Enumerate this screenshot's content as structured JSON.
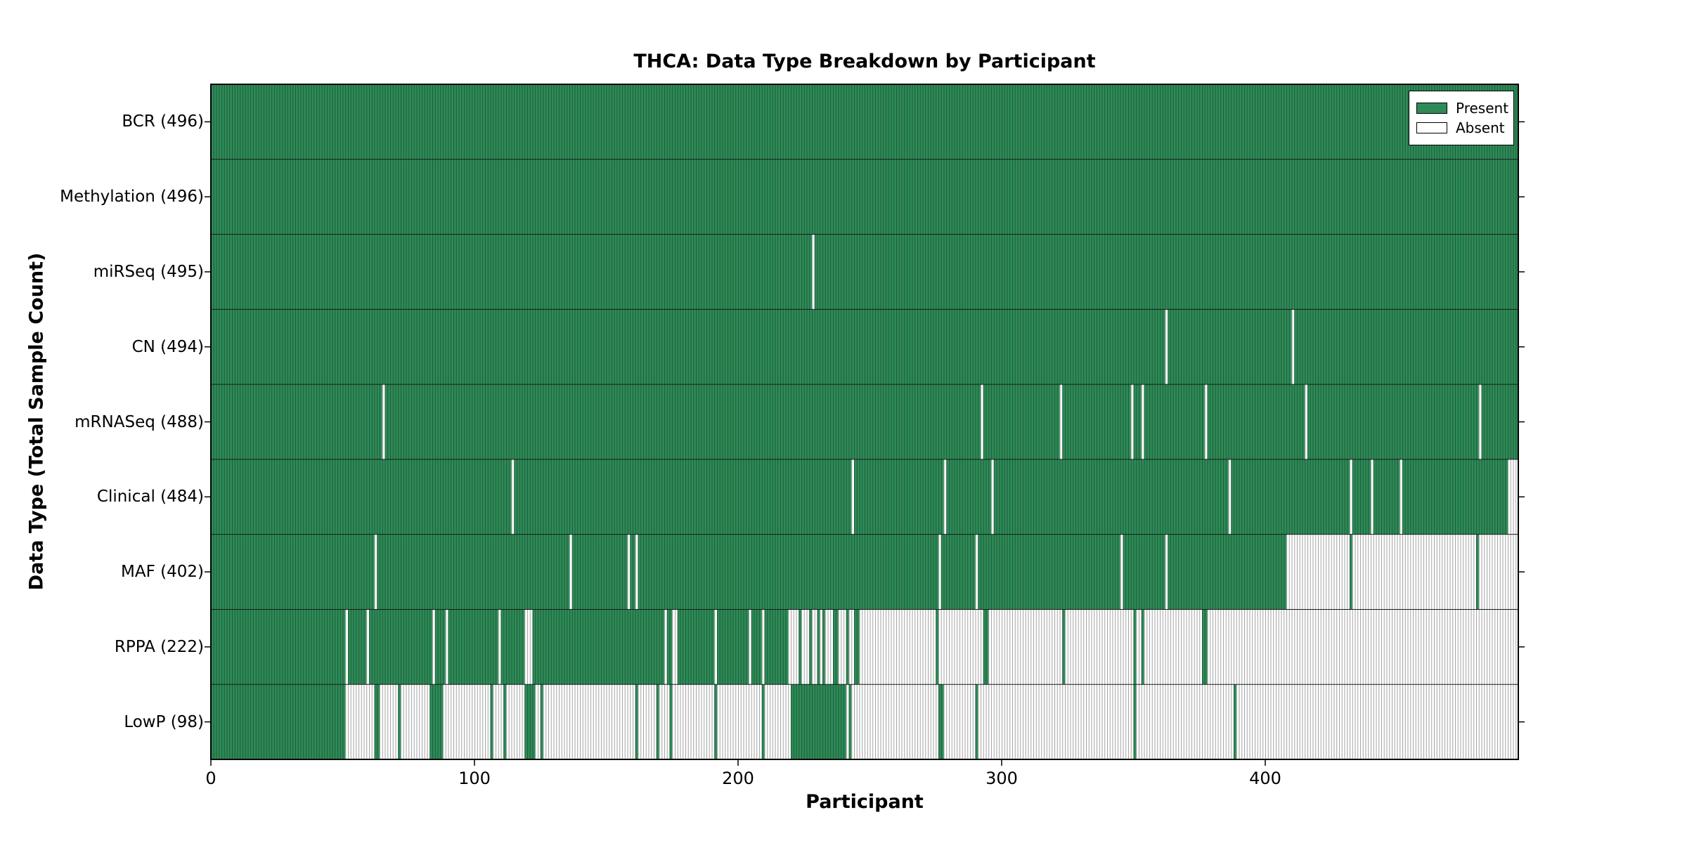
{
  "chart_data": {
    "type": "heatmap",
    "title": "THCA: Data Type Breakdown by Participant",
    "xlabel": "Participant",
    "ylabel": "Data Type (Total Sample Count)",
    "xlim": [
      0,
      496
    ],
    "x_ticks": [
      0,
      100,
      200,
      300,
      400
    ],
    "grid": false,
    "legend_position": "upper right",
    "legend": {
      "present_label": "Present",
      "absent_label": "Absent"
    },
    "colors": {
      "present_fill": "#2e8b57",
      "present_stripe": "#1d5c3a",
      "absent_fill": "#ffffff",
      "absent_stripe": "#a3a3a3",
      "border": "#000000"
    },
    "rows": [
      {
        "label": "BCR (496)",
        "data_type": "BCR",
        "present_count": 496,
        "absent_runs": []
      },
      {
        "label": "Methylation (496)",
        "data_type": "Methylation",
        "present_count": 496,
        "absent_runs": []
      },
      {
        "label": "miRSeq (495)",
        "data_type": "miRSeq",
        "present_count": 495,
        "absent_runs": [
          [
            228,
            228
          ]
        ]
      },
      {
        "label": "CN (494)",
        "data_type": "CN",
        "present_count": 494,
        "absent_runs": [
          [
            362,
            362
          ],
          [
            410,
            410
          ]
        ]
      },
      {
        "label": "mRNASeq (488)",
        "data_type": "mRNASeq",
        "present_count": 488,
        "absent_runs": [
          [
            65,
            65
          ],
          [
            292,
            292
          ],
          [
            322,
            322
          ],
          [
            349,
            349
          ],
          [
            353,
            353
          ],
          [
            377,
            377
          ],
          [
            415,
            415
          ],
          [
            481,
            481
          ]
        ]
      },
      {
        "label": "Clinical (484)",
        "data_type": "Clinical",
        "present_count": 484,
        "absent_runs": [
          [
            114,
            114
          ],
          [
            243,
            243
          ],
          [
            278,
            278
          ],
          [
            296,
            296
          ],
          [
            386,
            386
          ],
          [
            432,
            432
          ],
          [
            440,
            440
          ],
          [
            451,
            451
          ],
          [
            492,
            495
          ]
        ]
      },
      {
        "label": "MAF (402)",
        "data_type": "MAF",
        "present_count": 402,
        "absent_runs": [
          [
            62,
            62
          ],
          [
            136,
            136
          ],
          [
            158,
            158
          ],
          [
            161,
            161
          ],
          [
            276,
            276
          ],
          [
            290,
            290
          ],
          [
            345,
            345
          ],
          [
            362,
            362
          ],
          [
            408,
            431
          ],
          [
            433,
            479
          ],
          [
            481,
            495
          ]
        ]
      },
      {
        "label": "RPPA (222)",
        "data_type": "RPPA",
        "present_count": 222,
        "absent_runs": [
          [
            51,
            51
          ],
          [
            59,
            59
          ],
          [
            84,
            84
          ],
          [
            89,
            89
          ],
          [
            109,
            109
          ],
          [
            119,
            121
          ],
          [
            172,
            172
          ],
          [
            175,
            176
          ],
          [
            191,
            191
          ],
          [
            204,
            204
          ],
          [
            209,
            209
          ],
          [
            219,
            222
          ],
          [
            224,
            226
          ],
          [
            228,
            229
          ],
          [
            231,
            231
          ],
          [
            233,
            235
          ],
          [
            238,
            240
          ],
          [
            242,
            243
          ],
          [
            246,
            274
          ],
          [
            276,
            292
          ],
          [
            295,
            322
          ],
          [
            324,
            349
          ],
          [
            351,
            352
          ],
          [
            354,
            375
          ],
          [
            378,
            495
          ]
        ]
      },
      {
        "label": "LowP (98)",
        "data_type": "LowP",
        "present_count": 98,
        "absent_runs": [
          [
            51,
            61
          ],
          [
            64,
            70
          ],
          [
            72,
            82
          ],
          [
            88,
            105
          ],
          [
            107,
            110
          ],
          [
            112,
            118
          ],
          [
            123,
            124
          ],
          [
            126,
            160
          ],
          [
            162,
            168
          ],
          [
            170,
            173
          ],
          [
            175,
            190
          ],
          [
            192,
            208
          ],
          [
            210,
            219
          ],
          [
            241,
            241
          ],
          [
            243,
            275
          ],
          [
            278,
            289
          ],
          [
            291,
            349
          ],
          [
            351,
            387
          ],
          [
            389,
            495
          ]
        ]
      }
    ]
  }
}
